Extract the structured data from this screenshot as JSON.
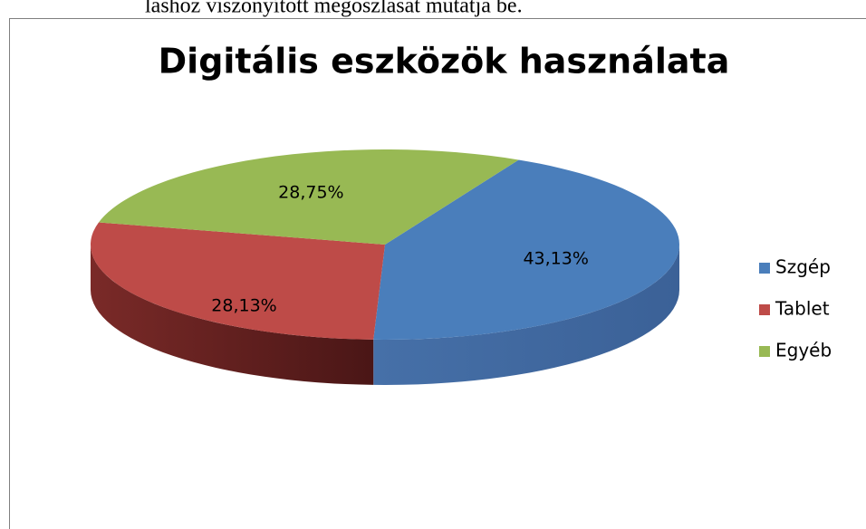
{
  "page_text": "lashoz viszonyított megoszlását mutatja be.",
  "chart_data": {
    "type": "pie",
    "title": "Digitális eszközök használata",
    "categories": [
      "Szgép",
      "Tablet",
      "Egyéb"
    ],
    "values": [
      43.13,
      28.13,
      28.75
    ],
    "value_labels": [
      "43,13%",
      "28,13%",
      "28,75%"
    ],
    "colors": [
      "#4a7ebb",
      "#be4b48",
      "#98b954"
    ],
    "legend": "right"
  }
}
